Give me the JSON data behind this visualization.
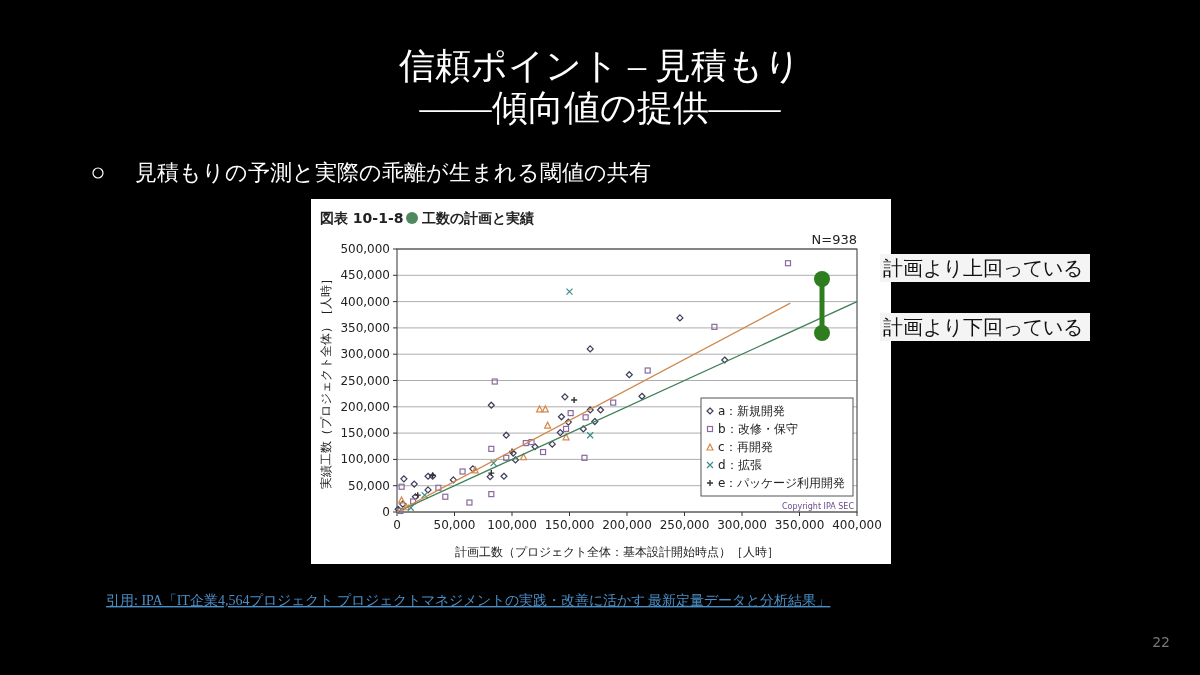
{
  "chart_data": {
    "type": "scatter",
    "title": "信頼ポイント – 見積もり",
    "subtitle": "——傾向値の提供——",
    "xlabel": "計画工数（プロジェクト全体：基本設計開始時点）［人時］",
    "ylabel": "実績工数（プロジェクト全体）［人時］",
    "xlim": [
      0,
      400000
    ],
    "ylim": [
      0,
      500000
    ],
    "xticks": [
      {
        "value": 0,
        "label": "0"
      },
      {
        "value": 50000,
        "label": "50,000"
      },
      {
        "value": 100000,
        "label": "100,000"
      },
      {
        "value": 150000,
        "label": "150,000"
      },
      {
        "value": 200000,
        "label": "200,000"
      },
      {
        "value": 250000,
        "label": "250,000"
      },
      {
        "value": 300000,
        "label": "300,000"
      },
      {
        "value": 350000,
        "label": "350,000"
      },
      {
        "value": 400000,
        "label": "400,000"
      }
    ],
    "yticks": [
      {
        "value": 0,
        "label": "0"
      },
      {
        "value": 50000,
        "label": "50,000"
      },
      {
        "value": 100000,
        "label": "100,000"
      },
      {
        "value": 150000,
        "label": "150,000"
      },
      {
        "value": 200000,
        "label": "200,000"
      },
      {
        "value": 250000,
        "label": "250,000"
      },
      {
        "value": 300000,
        "label": "300,000"
      },
      {
        "value": 350000,
        "label": "350,000"
      },
      {
        "value": 400000,
        "label": "400,000"
      },
      {
        "value": 450000,
        "label": "450,000"
      },
      {
        "value": 500000,
        "label": "500,000"
      }
    ],
    "grid": "y",
    "legend": "bottom right",
    "series": [
      {
        "name": "a：新規開発",
        "color": "#3d3d5c",
        "marker": "diamond",
        "x": [
          168000,
          202000,
          213000,
          82000,
          146000,
          143000,
          168000,
          177000,
          149000,
          172000,
          162000,
          142000,
          95000,
          101000,
          93000,
          6000,
          15000,
          27000,
          31000,
          120000,
          135000,
          103000,
          81000,
          66000,
          49000,
          27000,
          16000,
          246000,
          285000,
          1000,
          5000
        ],
        "values": [
          310000,
          261000,
          220000,
          203000,
          219000,
          181000,
          194000,
          194000,
          171000,
          172000,
          158000,
          151000,
          146000,
          112000,
          68000,
          63000,
          53000,
          68000,
          68000,
          124000,
          129000,
          99000,
          67000,
          82000,
          61000,
          42000,
          29000,
          369000,
          289000,
          5000,
          15000
        ]
      },
      {
        "name": "b：改修・保守",
        "color": "#8a6a9e",
        "marker": "square",
        "x": [
          85000,
          151000,
          164000,
          188000,
          147000,
          163000,
          82000,
          82000,
          63000,
          4000,
          127000,
          112000,
          117000,
          95000,
          57000,
          36000,
          42000,
          340000,
          276000,
          218000,
          3000,
          14000
        ],
        "values": [
          248000,
          188000,
          180000,
          208000,
          158000,
          103000,
          120000,
          34000,
          18000,
          48000,
          114000,
          131000,
          133000,
          103000,
          77000,
          46000,
          29000,
          473000,
          352000,
          269000,
          2000,
          20000
        ]
      },
      {
        "name": "c：再開発",
        "color": "#d4884a",
        "marker": "triangle",
        "x": [
          124000,
          129000,
          131000,
          147000,
          110000,
          68000,
          4000,
          8000
        ],
        "values": [
          196000,
          196000,
          165000,
          143000,
          105000,
          80000,
          23000,
          10000
        ]
      },
      {
        "name": "d：拡張",
        "color": "#3a8c8c",
        "marker": "cross",
        "x": [
          150000,
          168000,
          84000,
          24000,
          12000
        ],
        "values": [
          419000,
          146000,
          93000,
          32000,
          8000
        ]
      },
      {
        "name": "e：パッケージ利用開発",
        "color": "#333333",
        "marker": "plus",
        "x": [
          154000,
          31000,
          18000,
          82000,
          100000
        ],
        "values": [
          213000,
          70000,
          32000,
          74000,
          115000
        ]
      },
      {
        "type": "line",
        "color": "#3f7f55",
        "x": [
          0,
          400000
        ],
        "values": [
          0,
          400000
        ]
      },
      {
        "type": "line",
        "color": "#d08a50",
        "x": [
          0,
          342000
        ],
        "values": [
          0,
          397000
        ]
      }
    ],
    "annotations": [
      "見積もりの予測と実際の乖離が生まれる閾値の共有",
      "図表 10-1-8",
      "工数の計画と実績",
      "N=938",
      "Copyright IPA SEC",
      "引用: IPA「IT企業4,564プロジェクト プロジェクトマネジメントの実践・改善に活かす 最新定量データと分析結果」",
      "22",
      "計画より上回っている",
      "計画より下回っている"
    ]
  }
}
